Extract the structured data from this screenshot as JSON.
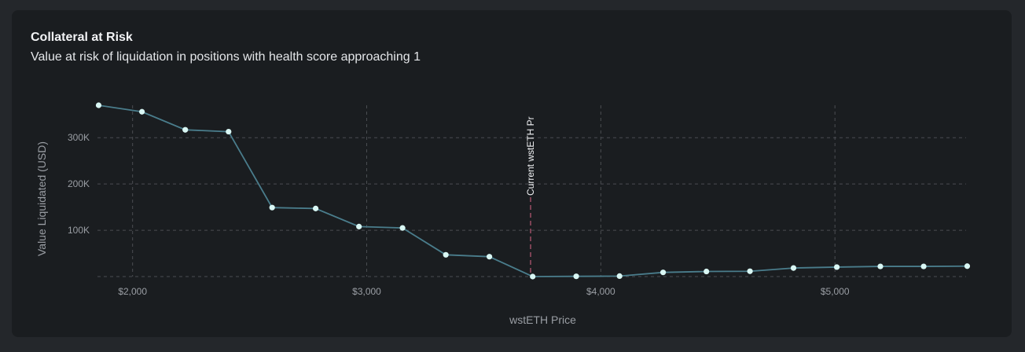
{
  "card": {
    "title": "Collateral at Risk",
    "subtitle": "Value at risk of liquidation in positions with health score approaching 1"
  },
  "colors": {
    "background": "#24272b",
    "card": "#1a1d20",
    "line": "#4a7d8c",
    "point": "#d9f7f4",
    "marker": "#b05670",
    "grid": "#4a4d52"
  },
  "chart_data": {
    "type": "line",
    "xlabel": "wstETH Price",
    "ylabel": "Value Liquidated (USD)",
    "x_ticks": [
      2000,
      3000,
      4000,
      5000
    ],
    "x_tick_labels": [
      "$2,000",
      "$3,000",
      "$4,000",
      "$5,000"
    ],
    "y_ticks": [
      100000,
      200000,
      300000
    ],
    "y_tick_labels": [
      "100K",
      "200K",
      "300K"
    ],
    "xlim": [
      1850,
      5560
    ],
    "ylim": [
      0,
      370000
    ],
    "grid": true,
    "marker": {
      "x": 3700,
      "label": "Current wstETH Pr"
    },
    "series": [
      {
        "x": [
          1855,
          2040,
          2225,
          2410,
          2596,
          2782,
          2967,
          3153,
          3338,
          3524,
          3709,
          3895,
          4080,
          4266,
          4451,
          4637,
          4823,
          5008,
          5194,
          5379,
          5565
        ],
        "y": [
          370000,
          356000,
          317000,
          313000,
          149000,
          147000,
          108000,
          105000,
          47000,
          43000,
          0,
          500,
          1000,
          9000,
          11000,
          11500,
          18500,
          20500,
          22000,
          22000,
          22500
        ]
      }
    ]
  }
}
